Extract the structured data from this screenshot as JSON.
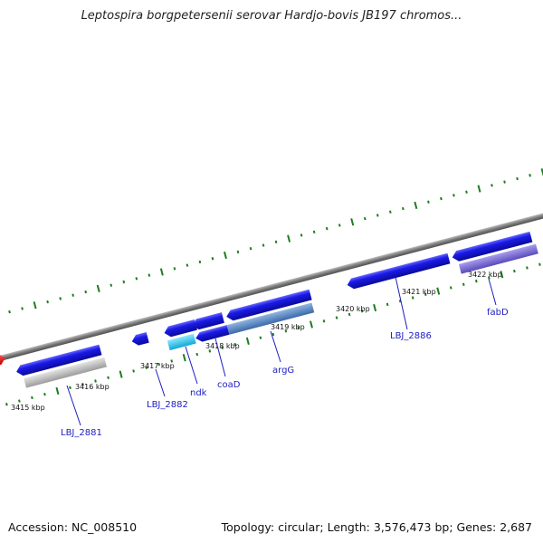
{
  "title": "Leptospira borgpetersenii serovar Hardjo-bovis JB197 chromos...",
  "footer": {
    "accession": "Accession: NC_008510",
    "summary": "Topology: circular; Length: 3,576,473 bp; Genes: 2,687"
  },
  "ruler_labels": [
    "3415 kbp",
    "3416 kbp",
    "3417 kbp",
    "3418 kbp",
    "3419 kbp",
    "3420 kbp",
    "3421 kbp",
    "3422 kbp"
  ],
  "gene_labels": [
    "LBJ_2881",
    "LBJ_2882",
    "ndk",
    "coaD",
    "argG",
    "LBJ_2886",
    "fabD"
  ],
  "colors": {
    "axis": "#8a8a8a",
    "tick": "#1e7d1e",
    "gene_blue": "#1a1ae6",
    "highlight_red": "#e01010",
    "label_blue": "#1c1cc4",
    "track_gray": "#bdbdbd",
    "track_cyan": "#22c3ee",
    "track_steel": "#5a8ac4",
    "track_purple": "#7d6fd0"
  }
}
